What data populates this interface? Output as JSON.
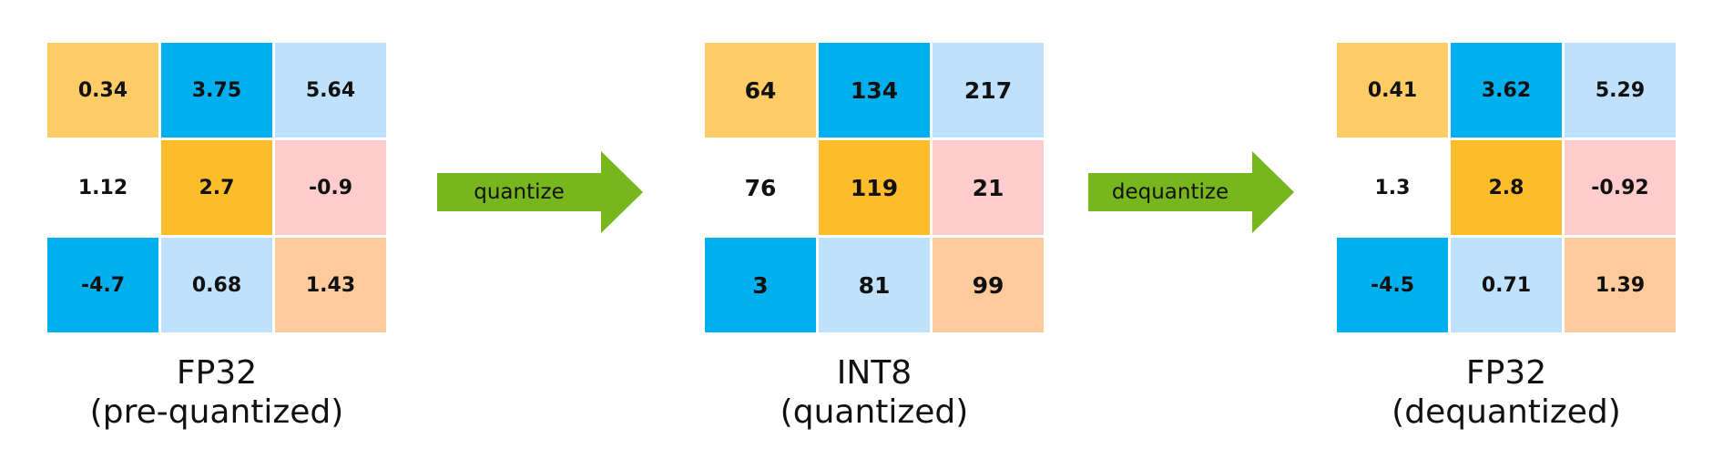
{
  "colors": {
    "orange": "#FECC66",
    "blue": "#00B0EE",
    "light_blue": "#BFE1FB",
    "white": "#FFFFFF",
    "gold": "#FDBD2A",
    "pink": "#FECCCC",
    "peach": "#FDCA9B",
    "arrow_green": "#78B61D"
  },
  "matrices": [
    {
      "caption_line1": "FP32",
      "caption_line2": "(pre-quantized)",
      "cells": [
        "0.34",
        "3.75",
        "5.64",
        "1.12",
        "2.7",
        "-0.9",
        "-4.7",
        "0.68",
        "1.43"
      ]
    },
    {
      "caption_line1": "INT8",
      "caption_line2": "(quantized)",
      "cells": [
        "64",
        "134",
        "217",
        "76",
        "119",
        "21",
        "3",
        "81",
        "99"
      ]
    },
    {
      "caption_line1": "FP32",
      "caption_line2": "(dequantized)",
      "cells": [
        "0.41",
        "3.62",
        "5.29",
        "1.3",
        "2.8",
        "-0.92",
        "-4.5",
        "0.71",
        "1.39"
      ]
    }
  ],
  "arrows": [
    {
      "label": "quantize",
      "icon": "right-arrow-icon"
    },
    {
      "label": "dequantize",
      "icon": "right-arrow-icon"
    }
  ]
}
